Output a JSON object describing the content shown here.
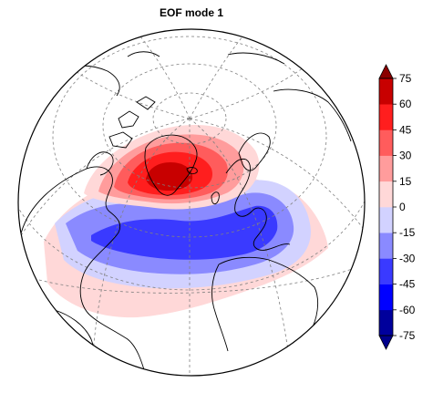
{
  "chart_data": {
    "type": "heatmap",
    "title": "EOF mode 1",
    "projection": "orthographic",
    "map_features": [
      "coastlines",
      "graticule-dashed"
    ],
    "pattern": [
      {
        "feature": "positive-lobe",
        "region": "Greenland",
        "value_range": [
          15,
          75
        ]
      },
      {
        "feature": "negative-lobe",
        "region": "North Atlantic mid-latitudes",
        "value_range": [
          -45,
          -15
        ]
      },
      {
        "feature": "weak-positive-band",
        "region": "subtropical Atlantic",
        "value_range": [
          0,
          15
        ]
      }
    ],
    "colorbar": {
      "placement": "right",
      "orientation": "vertical",
      "extend": "both",
      "ticks": [
        "75",
        "60",
        "45",
        "30",
        "15",
        "0",
        "-15",
        "-30",
        "-45",
        "-60",
        "-75"
      ],
      "levels": [
        -75,
        -60,
        -45,
        -30,
        -15,
        0,
        15,
        30,
        45,
        60,
        75
      ],
      "colors": [
        "#00009c",
        "#0000ff",
        "#3a3aff",
        "#8a8aff",
        "#d2d2ff",
        "#ffd8d8",
        "#ff9c9c",
        "#ff5c5c",
        "#ff1e1e",
        "#c80000"
      ],
      "extend_colors": {
        "low": "#00008b",
        "high": "#8b0000"
      }
    }
  }
}
